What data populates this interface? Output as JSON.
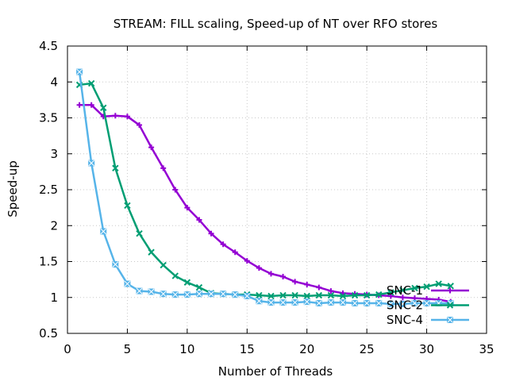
{
  "chart_data": {
    "type": "line",
    "title": "STREAM: FILL scaling, Speed-up of NT over RFO stores",
    "xlabel": "Number of Threads",
    "ylabel": "Speed-up",
    "xlim": [
      0,
      35
    ],
    "ylim": [
      0.5,
      4.5
    ],
    "xticks": [
      0,
      5,
      10,
      15,
      20,
      25,
      30,
      35
    ],
    "yticks": [
      0.5,
      1,
      1.5,
      2,
      2.5,
      3,
      3.5,
      4,
      4.5
    ],
    "xtick_labels": [
      "0",
      "5",
      "10",
      "15",
      "20",
      "25",
      "30",
      "35"
    ],
    "ytick_labels": [
      "0.5",
      "1",
      "1.5",
      "2",
      "2.5",
      "3",
      "3.5",
      "4",
      "4.5"
    ],
    "grid": true,
    "legend_position": "bottom-right",
    "series": [
      {
        "name": "SNC-1",
        "color": "#9400d3",
        "marker": "plus",
        "x": [
          1,
          2,
          3,
          4,
          5,
          6,
          7,
          8,
          9,
          10,
          11,
          12,
          13,
          14,
          15,
          16,
          17,
          18,
          19,
          20,
          21,
          22,
          23,
          24,
          25,
          26,
          27,
          28,
          29,
          30,
          31,
          32
        ],
        "y": [
          3.68,
          3.68,
          3.52,
          3.53,
          3.52,
          3.4,
          3.09,
          2.8,
          2.5,
          2.25,
          2.08,
          1.89,
          1.74,
          1.63,
          1.51,
          1.41,
          1.33,
          1.29,
          1.22,
          1.18,
          1.14,
          1.09,
          1.06,
          1.05,
          1.04,
          1.03,
          1.02,
          1.0,
          0.99,
          0.98,
          0.97,
          0.94
        ]
      },
      {
        "name": "SNC-2",
        "color": "#009e73",
        "marker": "x",
        "x": [
          1,
          2,
          3,
          4,
          5,
          6,
          7,
          8,
          9,
          10,
          11,
          12,
          13,
          14,
          15,
          16,
          17,
          18,
          19,
          20,
          21,
          22,
          23,
          24,
          25,
          26,
          27,
          28,
          29,
          30,
          31,
          32
        ],
        "y": [
          3.96,
          3.98,
          3.64,
          2.8,
          2.28,
          1.89,
          1.63,
          1.45,
          1.3,
          1.21,
          1.14,
          1.06,
          1.05,
          1.04,
          1.04,
          1.03,
          1.02,
          1.03,
          1.03,
          1.02,
          1.03,
          1.03,
          1.02,
          1.03,
          1.03,
          1.04,
          1.07,
          1.1,
          1.13,
          1.15,
          1.19,
          1.16
        ]
      },
      {
        "name": "SNC-4",
        "color": "#56b4e9",
        "marker": "box-x",
        "x": [
          1,
          2,
          3,
          4,
          5,
          6,
          7,
          8,
          9,
          10,
          11,
          12,
          13,
          14,
          15,
          16,
          17,
          18,
          19,
          20,
          21,
          22,
          23,
          24,
          25,
          26,
          27,
          28,
          29,
          30,
          31,
          32
        ],
        "y": [
          4.14,
          2.87,
          1.92,
          1.46,
          1.19,
          1.09,
          1.08,
          1.05,
          1.04,
          1.04,
          1.05,
          1.05,
          1.05,
          1.04,
          1.02,
          0.95,
          0.93,
          0.93,
          0.93,
          0.94,
          0.92,
          0.93,
          0.93,
          0.92,
          0.92,
          0.92,
          0.91,
          0.91,
          0.92,
          0.92,
          0.92,
          0.92
        ]
      }
    ]
  }
}
